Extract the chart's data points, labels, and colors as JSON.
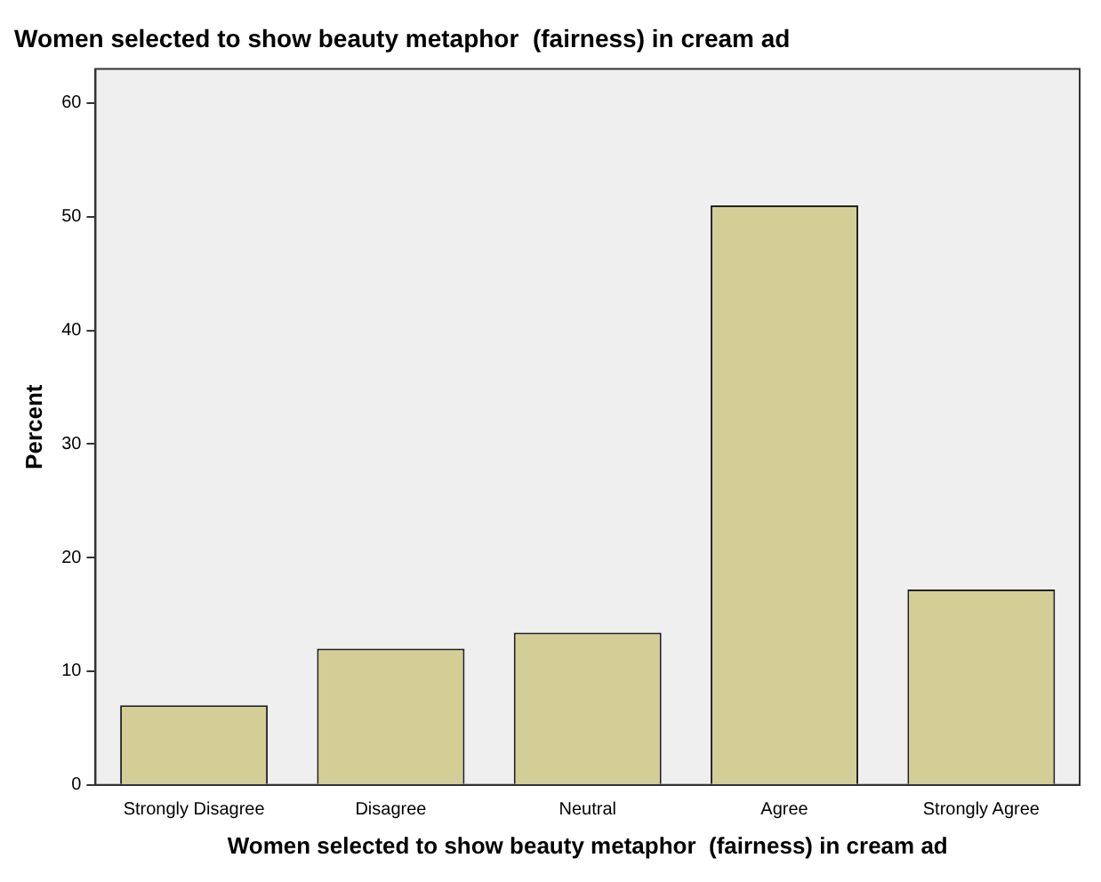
{
  "chart_data": {
    "type": "bar",
    "title": "Women selected to show beauty metaphor  (fairness) in cream ad",
    "xlabel": "Women selected to show beauty metaphor  (fairness) in cream ad",
    "ylabel": "Percent",
    "categories": [
      "Strongly Disagree",
      "Disagree",
      "Neutral",
      "Agree",
      "Strongly Agree"
    ],
    "values": [
      7,
      12,
      13.4,
      51,
      17.2
    ],
    "color": "#d3ce96",
    "ylim": [
      0,
      63
    ],
    "yticks": [
      0,
      10,
      20,
      30,
      40,
      50,
      60
    ],
    "grid": false,
    "legend": false
  }
}
